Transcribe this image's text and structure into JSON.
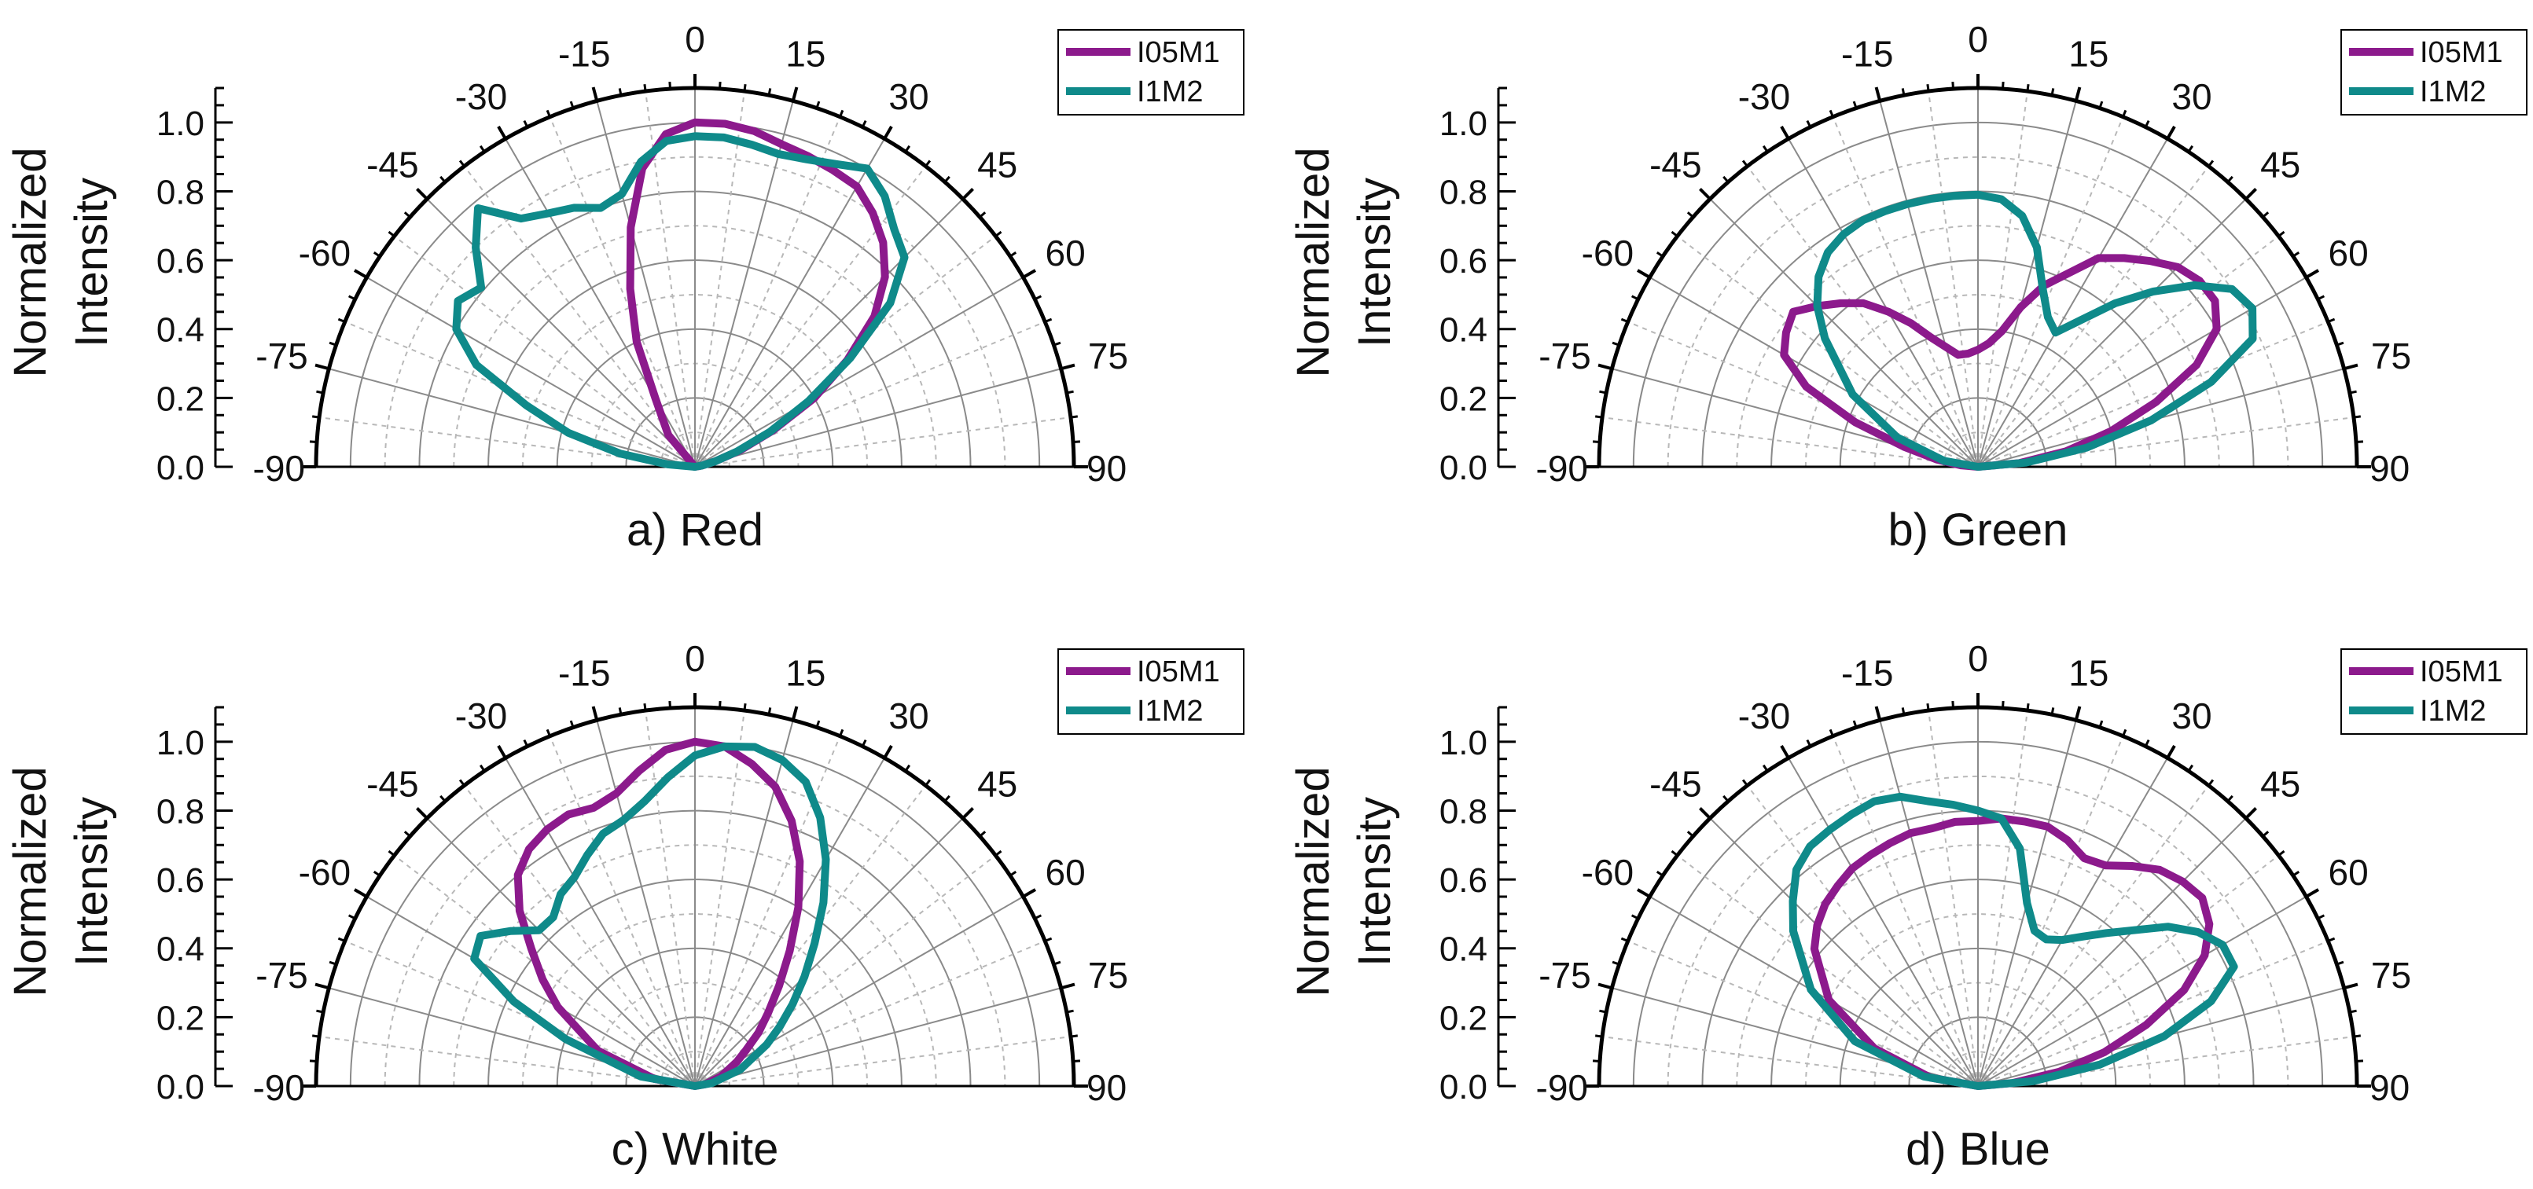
{
  "figure": {
    "colors": {
      "I05M1": "#8c1a8c",
      "I1M2": "#0f8a8a",
      "axis": "#000000",
      "grid": "#8a8a8a",
      "grid_minor": "#b8b8b8"
    }
  },
  "chart_data": [
    {
      "type": "polar-line",
      "title": "a) Red",
      "ylabel_lines": [
        "Normalized",
        "Intensity"
      ],
      "radial_range": [
        0,
        1.1
      ],
      "radial_ticks": [
        "0.0",
        "0.2",
        "0.4",
        "0.6",
        "0.8",
        "1.0"
      ],
      "angle_range": [
        -90,
        90
      ],
      "angle_ticks": [
        "-90",
        "-75",
        "-60",
        "-45",
        "-30",
        "-15",
        "0",
        "15",
        "30",
        "45",
        "60",
        "75",
        "90"
      ],
      "legend": [
        "I05M1",
        "I1M2"
      ],
      "series": [
        {
          "name": "I05M1",
          "angles": [
            -90,
            -40,
            -30,
            -25,
            -20,
            -15,
            -10,
            -5,
            0,
            5,
            10,
            15,
            20,
            25,
            30,
            35,
            40,
            45,
            50,
            55,
            60,
            65,
            70,
            75,
            80,
            90
          ],
          "values": [
            0,
            0.12,
            0.23,
            0.4,
            0.55,
            0.72,
            0.88,
            0.97,
            1.0,
            1.0,
            0.99,
            0.97,
            0.96,
            0.95,
            0.94,
            0.9,
            0.85,
            0.78,
            0.68,
            0.54,
            0.4,
            0.25,
            0.14,
            0.06,
            0.02,
            0
          ]
        },
        {
          "name": "I1M2",
          "angles": [
            -90,
            -85,
            -80,
            -75,
            -70,
            -65,
            -60,
            -55,
            -50,
            -45,
            -40,
            -35,
            -30,
            -25,
            -20,
            -15,
            -10,
            -5,
            0,
            5,
            10,
            15,
            20,
            25,
            30,
            35,
            40,
            45,
            50,
            55,
            60,
            65,
            70,
            75,
            80,
            90
          ],
          "values": [
            0,
            0.08,
            0.22,
            0.38,
            0.52,
            0.7,
            0.8,
            0.84,
            0.81,
            0.9,
            0.98,
            0.88,
            0.85,
            0.83,
            0.8,
            0.82,
            0.9,
            0.95,
            0.96,
            0.96,
            0.95,
            0.94,
            0.95,
            0.97,
            1.0,
            0.96,
            0.9,
            0.86,
            0.74,
            0.55,
            0.38,
            0.24,
            0.13,
            0.06,
            0.02,
            0
          ]
        }
      ]
    },
    {
      "type": "polar-line",
      "title": "b) Green",
      "ylabel_lines": [
        "Normalized",
        "Intensity"
      ],
      "radial_range": [
        0,
        1.1
      ],
      "radial_ticks": [
        "0.0",
        "0.2",
        "0.4",
        "0.6",
        "0.8",
        "1.0"
      ],
      "angle_range": [
        -90,
        90
      ],
      "angle_ticks": [
        "-90",
        "-75",
        "-60",
        "-45",
        "-30",
        "-15",
        "0",
        "15",
        "30",
        "45",
        "60",
        "75",
        "90"
      ],
      "legend": [
        "I05M1",
        "I1M2"
      ],
      "series": [
        {
          "name": "I05M1",
          "angles": [
            -90,
            -85,
            -80,
            -75,
            -70,
            -65,
            -60,
            -55,
            -50,
            -45,
            -40,
            -35,
            -30,
            -25,
            -20,
            -15,
            -10,
            -5,
            0,
            5,
            10,
            15,
            20,
            25,
            30,
            35,
            40,
            45,
            50,
            55,
            60,
            65,
            70,
            75,
            80,
            85,
            90
          ],
          "values": [
            0,
            0.05,
            0.12,
            0.22,
            0.38,
            0.55,
            0.65,
            0.68,
            0.7,
            0.66,
            0.62,
            0.58,
            0.52,
            0.46,
            0.4,
            0.36,
            0.33,
            0.33,
            0.34,
            0.36,
            0.4,
            0.48,
            0.56,
            0.62,
            0.7,
            0.74,
            0.78,
            0.82,
            0.84,
            0.84,
            0.8,
            0.7,
            0.55,
            0.4,
            0.26,
            0.12,
            0
          ]
        },
        {
          "name": "I1M2",
          "angles": [
            -90,
            -80,
            -70,
            -60,
            -50,
            -45,
            -40,
            -35,
            -30,
            -25,
            -20,
            -15,
            -10,
            -5,
            0,
            5,
            10,
            15,
            20,
            25,
            30,
            35,
            40,
            45,
            50,
            55,
            60,
            65,
            70,
            75,
            80,
            85,
            90
          ],
          "values": [
            0,
            0.1,
            0.25,
            0.42,
            0.58,
            0.66,
            0.72,
            0.76,
            0.78,
            0.79,
            0.79,
            0.79,
            0.79,
            0.79,
            0.79,
            0.78,
            0.74,
            0.66,
            0.55,
            0.48,
            0.45,
            0.52,
            0.62,
            0.72,
            0.82,
            0.9,
            0.92,
            0.88,
            0.72,
            0.52,
            0.32,
            0.14,
            0
          ]
        }
      ]
    },
    {
      "type": "polar-line",
      "title": "c) White",
      "ylabel_lines": [
        "Normalized",
        "Intensity"
      ],
      "radial_range": [
        0,
        1.1
      ],
      "radial_ticks": [
        "0.0",
        "0.2",
        "0.4",
        "0.6",
        "0.8",
        "1.0"
      ],
      "angle_range": [
        -90,
        90
      ],
      "angle_ticks": [
        "-90",
        "-75",
        "-60",
        "-45",
        "-30",
        "-15",
        "0",
        "15",
        "30",
        "45",
        "60",
        "75",
        "90"
      ],
      "legend": [
        "I05M1",
        "I1M2"
      ],
      "series": [
        {
          "name": "I05M1",
          "angles": [
            -90,
            -80,
            -70,
            -60,
            -55,
            -50,
            -45,
            -40,
            -35,
            -30,
            -25,
            -20,
            -15,
            -10,
            -5,
            0,
            5,
            10,
            15,
            20,
            25,
            30,
            35,
            40,
            45,
            50,
            55,
            60,
            70,
            80,
            90
          ],
          "values": [
            0,
            0.12,
            0.3,
            0.46,
            0.54,
            0.62,
            0.72,
            0.8,
            0.84,
            0.86,
            0.87,
            0.86,
            0.88,
            0.93,
            0.98,
            1.0,
            0.99,
            0.95,
            0.9,
            0.82,
            0.72,
            0.6,
            0.48,
            0.38,
            0.3,
            0.24,
            0.18,
            0.14,
            0.08,
            0.03,
            0
          ]
        },
        {
          "name": "I1M2",
          "angles": [
            -90,
            -80,
            -70,
            -65,
            -60,
            -55,
            -50,
            -45,
            -40,
            -35,
            -30,
            -25,
            -20,
            -15,
            -10,
            -5,
            0,
            5,
            10,
            15,
            20,
            25,
            30,
            35,
            40,
            45,
            50,
            55,
            60,
            70,
            80,
            90
          ],
          "values": [
            0,
            0.16,
            0.4,
            0.58,
            0.74,
            0.76,
            0.7,
            0.64,
            0.64,
            0.68,
            0.7,
            0.74,
            0.78,
            0.8,
            0.84,
            0.9,
            0.96,
            0.99,
            1.0,
            0.98,
            0.94,
            0.86,
            0.76,
            0.65,
            0.54,
            0.45,
            0.37,
            0.3,
            0.24,
            0.14,
            0.05,
            0
          ]
        }
      ]
    },
    {
      "type": "polar-line",
      "title": "d) Blue",
      "ylabel_lines": [
        "Normalized",
        "Intensity"
      ],
      "radial_range": [
        0,
        1.1
      ],
      "radial_ticks": [
        "0.0",
        "0.2",
        "0.4",
        "0.6",
        "0.8",
        "1.0"
      ],
      "angle_range": [
        -90,
        90
      ],
      "angle_ticks": [
        "-90",
        "-75",
        "-60",
        "-45",
        "-30",
        "-15",
        "0",
        "15",
        "30",
        "45",
        "60",
        "75",
        "90"
      ],
      "legend": [
        "I05M1",
        "I1M2"
      ],
      "series": [
        {
          "name": "I05M1",
          "angles": [
            -90,
            -80,
            -70,
            -60,
            -50,
            -45,
            -40,
            -35,
            -30,
            -25,
            -20,
            -15,
            -10,
            -5,
            0,
            5,
            10,
            15,
            20,
            25,
            30,
            35,
            40,
            45,
            50,
            55,
            60,
            65,
            70,
            75,
            80,
            85,
            90
          ],
          "values": [
            0,
            0.14,
            0.32,
            0.5,
            0.62,
            0.66,
            0.69,
            0.71,
            0.73,
            0.74,
            0.75,
            0.76,
            0.76,
            0.77,
            0.77,
            0.78,
            0.78,
            0.78,
            0.76,
            0.73,
            0.74,
            0.78,
            0.82,
            0.84,
            0.85,
            0.82,
            0.76,
            0.66,
            0.52,
            0.38,
            0.24,
            0.1,
            0
          ]
        },
        {
          "name": "I1M2",
          "angles": [
            -90,
            -80,
            -70,
            -60,
            -50,
            -45,
            -40,
            -35,
            -30,
            -25,
            -20,
            -15,
            -10,
            -5,
            0,
            5,
            10,
            15,
            20,
            25,
            30,
            35,
            40,
            45,
            50,
            55,
            60,
            65,
            70,
            75,
            80,
            85,
            90
          ],
          "values": [
            0,
            0.16,
            0.38,
            0.56,
            0.7,
            0.76,
            0.82,
            0.85,
            0.86,
            0.87,
            0.88,
            0.87,
            0.84,
            0.82,
            0.8,
            0.78,
            0.7,
            0.55,
            0.48,
            0.47,
            0.49,
            0.53,
            0.58,
            0.64,
            0.72,
            0.78,
            0.82,
            0.82,
            0.72,
            0.56,
            0.36,
            0.16,
            0
          ]
        }
      ]
    }
  ]
}
